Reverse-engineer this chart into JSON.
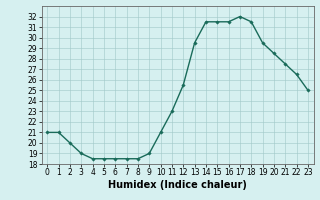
{
  "x": [
    0,
    1,
    2,
    3,
    4,
    5,
    6,
    7,
    8,
    9,
    10,
    11,
    12,
    13,
    14,
    15,
    16,
    17,
    18,
    19,
    20,
    21,
    22,
    23
  ],
  "y": [
    21,
    21,
    20,
    19,
    18.5,
    18.5,
    18.5,
    18.5,
    18.5,
    19,
    21,
    23,
    25.5,
    29.5,
    31.5,
    31.5,
    31.5,
    32,
    31.5,
    29.5,
    28.5,
    27.5,
    26.5,
    25
  ],
  "line_color": "#1a6b5a",
  "marker": "D",
  "marker_size": 1.8,
  "bg_color": "#d6f0f0",
  "grid_color": "#a0c8c8",
  "xlabel": "Humidex (Indice chaleur)",
  "ylim": [
    18,
    33
  ],
  "xlim": [
    -0.5,
    23.5
  ],
  "yticks": [
    18,
    19,
    20,
    21,
    22,
    23,
    24,
    25,
    26,
    27,
    28,
    29,
    30,
    31,
    32
  ],
  "xticks": [
    0,
    1,
    2,
    3,
    4,
    5,
    6,
    7,
    8,
    9,
    10,
    11,
    12,
    13,
    14,
    15,
    16,
    17,
    18,
    19,
    20,
    21,
    22,
    23
  ],
  "tick_fontsize": 5.5,
  "xlabel_fontsize": 7,
  "line_width": 1.0
}
